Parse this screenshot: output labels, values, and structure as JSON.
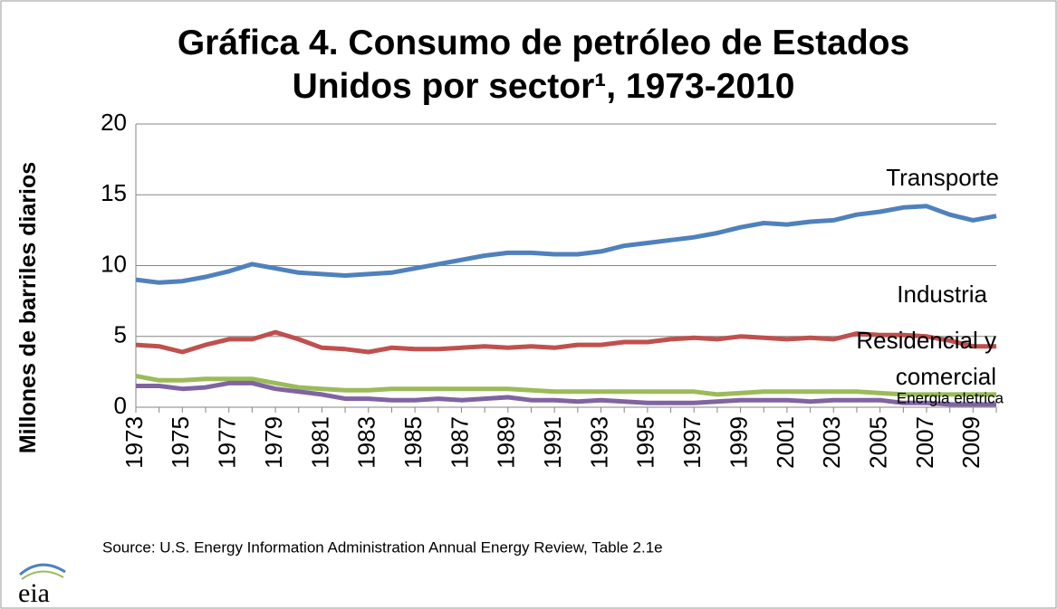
{
  "chart_data": {
    "type": "line",
    "title": "Gráfica 4. Consumo de petróleo de Estados Unidos por sector¹, 1973-2010",
    "y_label": "Millones de barriles diarios",
    "source": "Source: U.S. Energy Information Administration Annual Energy Review, Table 2.1e",
    "logo": "eia",
    "categories": [
      "1973",
      null,
      "1975",
      null,
      "1977",
      null,
      "1979",
      null,
      "1981",
      null,
      "1983",
      null,
      "1985",
      null,
      "1987",
      null,
      "1989",
      null,
      "1991",
      null,
      "1993",
      null,
      "1995",
      null,
      "1997",
      null,
      "1999",
      null,
      "2001",
      null,
      "2003",
      null,
      "2005",
      null,
      "2007",
      null,
      "2009",
      null
    ],
    "series": [
      {
        "name": "Transporte",
        "color": "#4f81bd",
        "values": [
          9.0,
          8.8,
          8.9,
          9.2,
          9.6,
          10.1,
          9.8,
          9.5,
          9.4,
          9.3,
          9.4,
          9.5,
          9.8,
          10.1,
          10.4,
          10.7,
          10.9,
          10.9,
          10.8,
          10.8,
          11.0,
          11.4,
          11.6,
          11.8,
          12.0,
          12.3,
          12.7,
          13.0,
          12.9,
          13.1,
          13.2,
          13.6,
          13.8,
          14.1,
          14.2,
          13.6,
          13.2,
          13.5
        ]
      },
      {
        "name": "Industria",
        "color": "#c0504d",
        "values": [
          4.4,
          4.3,
          3.9,
          4.4,
          4.8,
          4.8,
          5.3,
          4.8,
          4.2,
          4.1,
          3.9,
          4.2,
          4.1,
          4.1,
          4.2,
          4.3,
          4.2,
          4.3,
          4.2,
          4.4,
          4.4,
          4.6,
          4.6,
          4.8,
          4.9,
          4.8,
          5.0,
          4.9,
          4.8,
          4.9,
          4.8,
          5.2,
          5.1,
          5.1,
          5.0,
          4.7,
          4.3,
          4.3
        ]
      },
      {
        "name": "Residencial y comercial",
        "color": "#9bbb59",
        "values": [
          2.2,
          1.9,
          1.9,
          2.0,
          2.0,
          2.0,
          1.7,
          1.4,
          1.3,
          1.2,
          1.2,
          1.3,
          1.3,
          1.3,
          1.3,
          1.3,
          1.3,
          1.2,
          1.1,
          1.1,
          1.1,
          1.1,
          1.1,
          1.1,
          1.1,
          0.9,
          1.0,
          1.1,
          1.1,
          1.1,
          1.1,
          1.1,
          1.0,
          0.9,
          0.9,
          0.9,
          0.9,
          0.9
        ]
      },
      {
        "name": "Energia eletrica",
        "color": "#8064a2",
        "values": [
          1.5,
          1.5,
          1.3,
          1.4,
          1.7,
          1.7,
          1.3,
          1.1,
          0.9,
          0.6,
          0.6,
          0.5,
          0.5,
          0.6,
          0.5,
          0.6,
          0.7,
          0.5,
          0.5,
          0.4,
          0.5,
          0.4,
          0.3,
          0.3,
          0.3,
          0.4,
          0.5,
          0.5,
          0.5,
          0.4,
          0.5,
          0.5,
          0.5,
          0.3,
          0.3,
          0.2,
          0.2,
          0.2
        ]
      }
    ],
    "ylim": [
      0,
      20
    ],
    "yticks": [
      0,
      5,
      10,
      15,
      20
    ],
    "grid": true
  }
}
